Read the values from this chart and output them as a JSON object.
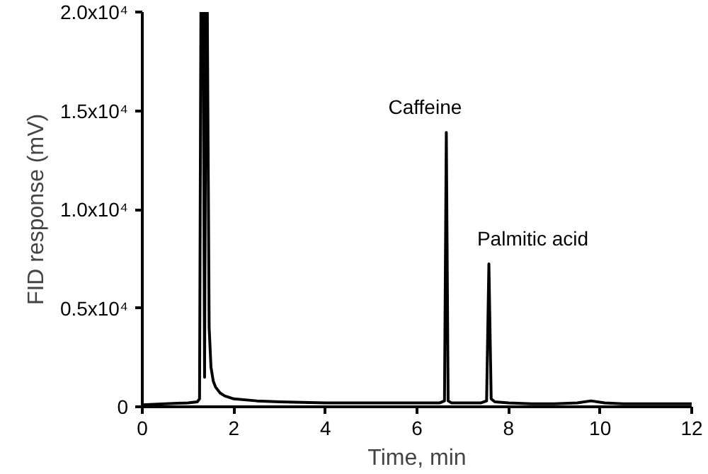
{
  "chart_data": {
    "type": "line",
    "xlabel": "Time, min",
    "ylabel": "FID response (mV)",
    "xlim": [
      0,
      12
    ],
    "ylim": [
      0,
      20000
    ],
    "xticks": [
      0,
      2,
      4,
      6,
      8,
      10,
      12
    ],
    "yticks": [
      0,
      {
        "value": 5000,
        "label": "0.5x10⁴"
      },
      {
        "value": 10000,
        "label": "1.0x10⁴"
      },
      {
        "value": 15000,
        "label": "1.5x10⁴"
      },
      {
        "value": 20000,
        "label": "2.0x10⁴"
      }
    ],
    "grid": false,
    "marker": "none",
    "line_style": "solid",
    "series": [
      {
        "color": "#000000",
        "x": [
          0,
          0.5,
          1.0,
          1.2,
          1.25,
          1.28,
          1.33,
          1.36,
          1.39,
          1.42,
          1.46,
          1.5,
          1.55,
          1.6,
          1.7,
          1.8,
          2.0,
          2.5,
          3.0,
          4.0,
          5.0,
          6.0,
          6.5,
          6.6,
          6.64,
          6.68,
          6.75,
          7.0,
          7.4,
          7.52,
          7.57,
          7.62,
          7.7,
          8.0,
          8.5,
          9.0,
          9.5,
          9.8,
          10.1,
          10.5,
          11.0,
          12.0
        ],
        "values": [
          100,
          150,
          200,
          250,
          400,
          20000,
          20000,
          1500,
          20000,
          20000,
          4000,
          2000,
          1300,
          1000,
          700,
          550,
          400,
          300,
          250,
          200,
          200,
          200,
          200,
          300,
          13900,
          300,
          200,
          200,
          200,
          300,
          7240,
          400,
          250,
          200,
          150,
          150,
          200,
          300,
          200,
          150,
          150,
          150
        ]
      }
    ],
    "annotations": [
      {
        "text": "Caffeine",
        "x": 6.64,
        "y": 13900
      },
      {
        "text": "Palmitic acid",
        "x": 7.57,
        "y": 7240
      }
    ]
  }
}
